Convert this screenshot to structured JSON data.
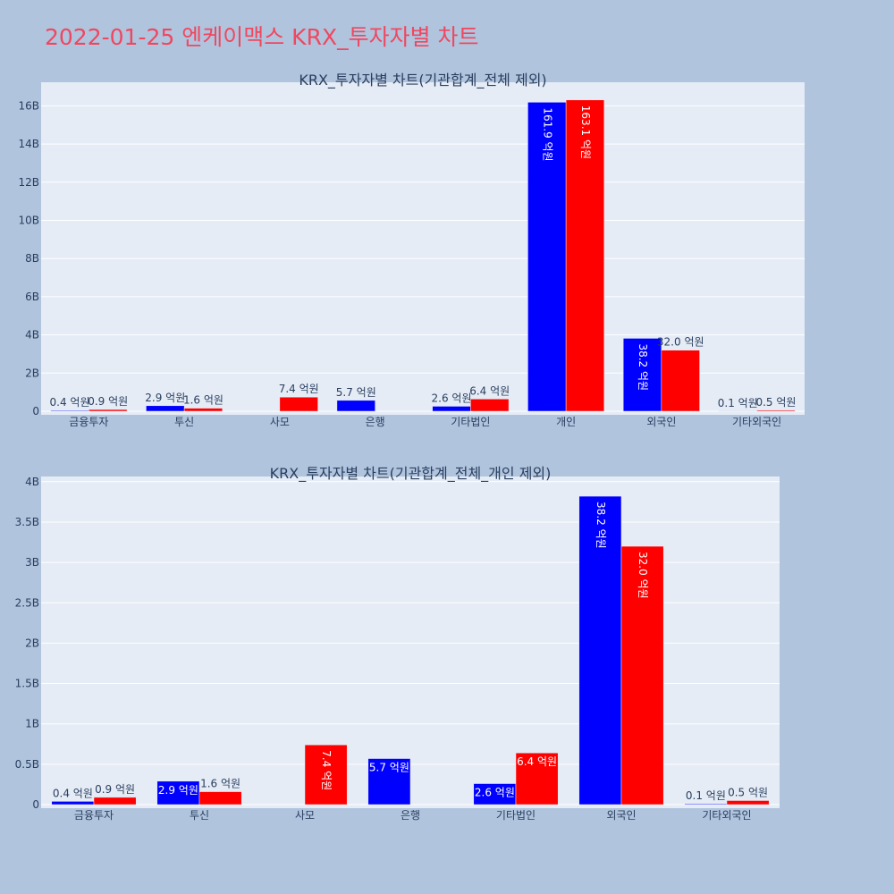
{
  "page": {
    "title": "2022-01-25 엔케이맥스 KRX_투자자별 차트"
  },
  "chart_data": [
    {
      "type": "bar",
      "title": "KRX_투자자별 차트(기관합계_전체 제외)",
      "categories": [
        "금융투자",
        "투신",
        "사모",
        "은행",
        "기타법인",
        "개인",
        "외국인",
        "기타외국인"
      ],
      "series": [
        {
          "color": "#0000ff",
          "values": [
            40000000,
            290000000,
            0,
            570000000,
            260000000,
            16190000000,
            3820000000,
            10000000
          ],
          "labels": [
            "0.4 억원",
            "2.9 억원",
            "",
            "5.7 억원",
            "2.6 억원",
            "161.9 억원",
            "38.2 억원",
            "0.1 억원"
          ]
        },
        {
          "color": "#ff0000",
          "values": [
            90000000,
            160000000,
            740000000,
            0,
            640000000,
            16310000000,
            3200000000,
            50000000
          ],
          "labels": [
            "0.9 억원",
            "1.6 억원",
            "7.4 억원",
            "",
            "6.4 억원",
            "163.1 억원",
            "32.0 억원",
            "0.5 억원"
          ]
        }
      ],
      "y_ticks": [
        0,
        2000000000,
        4000000000,
        6000000000,
        8000000000,
        10000000000,
        12000000000,
        14000000000,
        16000000000
      ],
      "y_tick_labels": [
        "0",
        "2B",
        "4B",
        "6B",
        "8B",
        "10B",
        "12B",
        "14B",
        "16B"
      ],
      "ylim": [
        0,
        17050000000
      ],
      "grid": true,
      "legend": "none"
    },
    {
      "type": "bar",
      "title": "KRX_투자자별 차트(기관합계_전체_개인 제외)",
      "categories": [
        "금융투자",
        "투신",
        "사모",
        "은행",
        "기타법인",
        "외국인",
        "기타외국인"
      ],
      "series": [
        {
          "color": "#0000ff",
          "values": [
            40000000,
            290000000,
            0,
            570000000,
            260000000,
            3820000000,
            10000000
          ],
          "labels": [
            "0.4 억원",
            "2.9 억원",
            "",
            "5.7 억원",
            "2.6 억원",
            "38.2 억원",
            "0.1 억원"
          ]
        },
        {
          "color": "#ff0000",
          "values": [
            90000000,
            160000000,
            740000000,
            0,
            640000000,
            3200000000,
            50000000
          ],
          "labels": [
            "0.9 억원",
            "1.6 억원",
            "7.4 억원",
            "",
            "6.4 억원",
            "32.0 억원",
            "0.5 억원"
          ]
        }
      ],
      "y_ticks": [
        0,
        500000000,
        1000000000,
        1500000000,
        2000000000,
        2500000000,
        3000000000,
        3500000000,
        4000000000
      ],
      "y_tick_labels": [
        "0",
        "0.5B",
        "1B",
        "1.5B",
        "2B",
        "2.5B",
        "3B",
        "3.5B",
        "4B"
      ],
      "ylim": [
        0,
        4020000000
      ],
      "grid": true,
      "legend": "none"
    }
  ]
}
